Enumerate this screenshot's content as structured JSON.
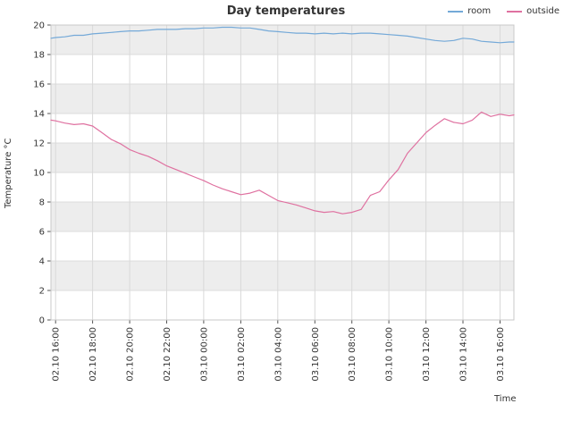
{
  "chart_data": {
    "type": "line",
    "title": "Day temperatures",
    "xlabel": "Time",
    "ylabel": "Temperature °C",
    "ylim": [
      0,
      20
    ],
    "grid": true,
    "legend_position": "top-right",
    "band_colors": [
      "#ffffff",
      "#ededed"
    ],
    "y_ticks": [
      0,
      2,
      4,
      6,
      8,
      10,
      12,
      14,
      16,
      18,
      20
    ],
    "x_tick_hours": [
      0,
      2,
      4,
      6,
      8,
      10,
      12,
      14,
      16,
      18,
      20,
      22,
      24
    ],
    "x_tick_labels": [
      "02.10 16:00",
      "02.10 18:00",
      "02.10 20:00",
      "02.10 22:00",
      "03.10 00:00",
      "03.10 02:00",
      "03.10 04:00",
      "03.10 06:00",
      "03.10 08:00",
      "03.10 10:00",
      "03.10 12:00",
      "03.10 14:00",
      "03.10 16:00"
    ],
    "x_domain_hours": [
      -0.25,
      24.75
    ],
    "x_hours": [
      -0.25,
      0,
      0.5,
      1,
      1.5,
      2,
      2.5,
      3,
      3.5,
      4,
      4.5,
      5,
      5.5,
      6,
      6.5,
      7,
      7.5,
      8,
      8.5,
      9,
      9.5,
      10,
      10.5,
      11,
      11.5,
      12,
      12.5,
      13,
      13.5,
      14,
      14.5,
      15,
      15.5,
      16,
      16.5,
      17,
      17.5,
      18,
      18.5,
      19,
      19.5,
      20,
      20.5,
      21,
      21.5,
      22,
      22.5,
      23,
      23.5,
      24,
      24.5,
      24.75
    ],
    "series": [
      {
        "name": "room",
        "color": "#74a9d8",
        "values": [
          19.1,
          19.15,
          19.2,
          19.3,
          19.3,
          19.4,
          19.45,
          19.5,
          19.55,
          19.6,
          19.6,
          19.65,
          19.7,
          19.7,
          19.7,
          19.75,
          19.75,
          19.8,
          19.8,
          19.85,
          19.85,
          19.8,
          19.8,
          19.7,
          19.6,
          19.55,
          19.5,
          19.45,
          19.45,
          19.4,
          19.45,
          19.4,
          19.45,
          19.4,
          19.45,
          19.45,
          19.4,
          19.35,
          19.3,
          19.25,
          19.15,
          19.05,
          18.95,
          18.9,
          18.95,
          19.1,
          19.05,
          18.9,
          18.85,
          18.8,
          18.85,
          18.85
        ]
      },
      {
        "name": "outside",
        "color": "#df71a0",
        "values": [
          13.55,
          13.5,
          13.35,
          13.25,
          13.3,
          13.15,
          12.7,
          12.25,
          11.95,
          11.55,
          11.3,
          11.1,
          10.8,
          10.45,
          10.2,
          9.95,
          9.7,
          9.45,
          9.15,
          8.9,
          8.7,
          8.5,
          8.6,
          8.8,
          8.45,
          8.1,
          7.95,
          7.8,
          7.6,
          7.4,
          7.3,
          7.35,
          7.2,
          7.3,
          7.5,
          8.45,
          8.7,
          9.5,
          10.2,
          11.3,
          12.0,
          12.7,
          13.2,
          13.65,
          13.4,
          13.3,
          13.55,
          14.1,
          13.8,
          13.95,
          13.85,
          13.9
        ]
      }
    ]
  }
}
